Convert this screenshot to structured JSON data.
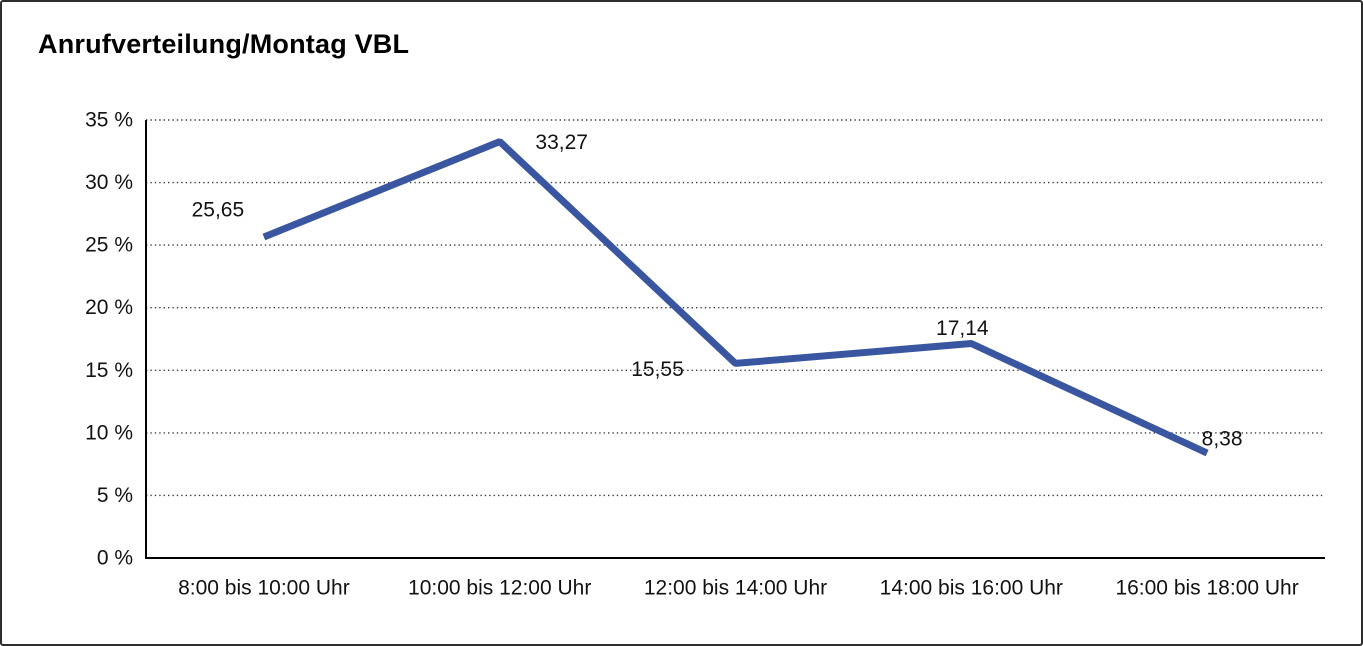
{
  "page": {
    "title": "Anrufverteilung/Montag VBL"
  },
  "chart_data": {
    "type": "line",
    "title": "Anrufverteilung/Montag VBL",
    "categories": [
      "8:00 bis 10:00 Uhr",
      "10:00 bis 12:00 Uhr",
      "12:00 bis 14:00 Uhr",
      "14:00 bis 16:00 Uhr",
      "16:00 bis 18:00 Uhr"
    ],
    "values": [
      25.65,
      33.27,
      15.55,
      17.14,
      8.38
    ],
    "value_labels": [
      "25,65",
      "33,27",
      "15,55",
      "17,14",
      "8,38"
    ],
    "y_ticks": [
      "0 %",
      "5 %",
      "10 %",
      "15 %",
      "20 %",
      "25 %",
      "30 %",
      "35 %"
    ],
    "ylim": [
      0,
      35
    ],
    "y_tick_step": 5,
    "xlabel": "",
    "ylabel": "",
    "unit": "%",
    "grid": "dotted horizontal",
    "legend": "none",
    "line_color": "#3A56A0",
    "axis_color": "#000000",
    "gridline_color": "#3d3d3d",
    "text_color": "#121212"
  }
}
